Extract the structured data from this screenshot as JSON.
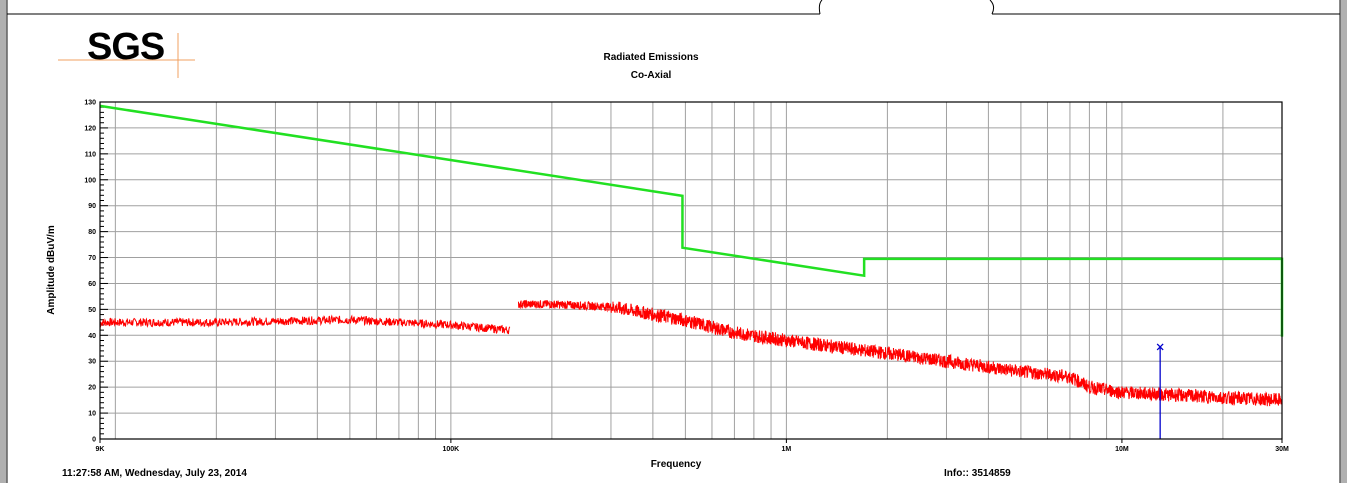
{
  "logo": {
    "text": "SGS",
    "color": "#8c8c8c"
  },
  "footer": {
    "timestamp": "11:27:58 AM, Wednesday, July 23, 2014",
    "info": "Info:: 3514859"
  },
  "colors": {
    "limit": "#22e022",
    "measured": "#ff0000",
    "marker": "#0000cc",
    "grid": "#a0a0a0"
  },
  "chart_data": {
    "type": "line",
    "title": "Radiated Emissions",
    "subtitle": "Co-Axial",
    "xlabel": "Frequency",
    "ylabel": "Amplitude dBuV/m",
    "xscale": "log",
    "xlim": [
      9000,
      30000000
    ],
    "ylim": [
      0,
      130
    ],
    "grid": true,
    "x_ticks": [
      {
        "value": 9000,
        "label": "9K"
      },
      {
        "value": 100000,
        "label": "100K"
      },
      {
        "value": 1000000,
        "label": "1M"
      },
      {
        "value": 10000000,
        "label": "10M"
      },
      {
        "value": 30000000,
        "label": "30M"
      }
    ],
    "y_ticks": [
      0,
      10,
      20,
      30,
      40,
      50,
      60,
      70,
      80,
      90,
      100,
      110,
      120,
      130
    ],
    "series": [
      {
        "kind": "limit",
        "x": [
          9000,
          490000,
          490000,
          1705000,
          1705000,
          30000000,
          30000000
        ],
        "y": [
          128.5,
          93.8,
          73.8,
          63.0,
          69.5,
          69.5,
          39.5
        ]
      },
      {
        "kind": "measured",
        "x": [
          9000,
          20000,
          50000,
          100000,
          150000,
          150000,
          200000,
          300000,
          490000,
          700000,
          1000000,
          2000000,
          3000000,
          5000000,
          7000000,
          8000000,
          10000000,
          20000000,
          30000000
        ],
        "y": [
          45,
          45,
          46,
          44,
          42,
          52,
          52,
          51,
          46,
          41,
          38,
          33,
          30,
          26,
          24,
          20,
          18,
          16,
          15
        ]
      }
    ],
    "marker": {
      "x": 13000000,
      "y": 35.5,
      "symbol": "x"
    }
  }
}
